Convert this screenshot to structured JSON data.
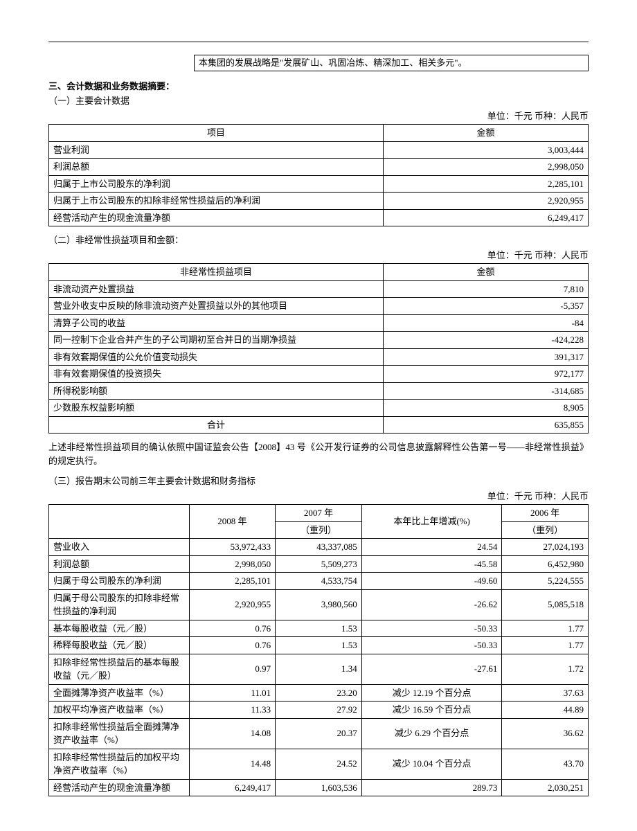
{
  "strategy_line": "本集团的发展战略是\"发展矿山、巩固冶炼、精深加工、相关多元\"。",
  "section3_title": "三、会计数据和业务数据摘要：",
  "sub1": {
    "title": "（一）主要会计数据",
    "unit": "单位：千元 币种：人民币",
    "headers": {
      "item": "项目",
      "amount": "金额"
    },
    "rows": [
      {
        "item": "营业利润",
        "amount": "3,003,444"
      },
      {
        "item": "利润总额",
        "amount": "2,998,050"
      },
      {
        "item": "归属于上市公司股东的净利润",
        "amount": "2,285,101"
      },
      {
        "item": "归属于上市公司股东的扣除非经常性损益后的净利润",
        "amount": "2,920,955"
      },
      {
        "item": "经营活动产生的现金流量净额",
        "amount": "6,249,417"
      }
    ]
  },
  "sub2": {
    "title": "（二）非经常性损益项目和金额：",
    "unit": "单位：千元 币种：人民币",
    "headers": {
      "item": "非经常性损益项目",
      "amount": "金额"
    },
    "rows": [
      {
        "item": "非流动资产处置损益",
        "amount": "7,810"
      },
      {
        "item": "营业外收支中反映的除非流动资产处置损益以外的其他项目",
        "amount": "-5,357"
      },
      {
        "item": "清算子公司的收益",
        "amount": "-84"
      },
      {
        "item": "同一控制下企业合并产生的子公司期初至合并日的当期净损益",
        "amount": "-424,228"
      },
      {
        "item": "非有效套期保值的公允价值变动损失",
        "amount": "391,317"
      },
      {
        "item": "非有效套期保值的投资损失",
        "amount": "972,177"
      },
      {
        "item": "所得税影响额",
        "amount": "-314,685"
      },
      {
        "item": "少数股东权益影响额",
        "amount": "8,905"
      }
    ],
    "total_label": "合计",
    "total_value": "635,855",
    "note": "上述非经常性损益项目的确认依照中国证监会公告【2008】43 号《公开发行证券的公司信息披露解释性公告第一号——非经常性损益》的规定执行。"
  },
  "sub3": {
    "title": "（三）报告期末公司前三年主要会计数据和财务指标",
    "unit": "单位：千元 币种：人民币",
    "headers": {
      "blank": "",
      "y2008": "2008 年",
      "y2007": "2007 年",
      "restated": "（重列）",
      "change": "本年比上年增减(%)",
      "y2006": "2006 年"
    },
    "rows": [
      {
        "item": "营业收入",
        "y2008": "53,972,433",
        "y2007": "43,337,085",
        "change": "24.54",
        "change_align": "num",
        "y2006": "27,024,193"
      },
      {
        "item": "利润总额",
        "y2008": "2,998,050",
        "y2007": "5,509,273",
        "change": "-45.58",
        "change_align": "num",
        "y2006": "6,452,980"
      },
      {
        "item": "归属于母公司股东的净利润",
        "y2008": "2,285,101",
        "y2007": "4,533,754",
        "change": "-49.60",
        "change_align": "num",
        "y2006": "5,224,555"
      },
      {
        "item": "归属于母公司股东的扣除非经常性损益的净利润",
        "y2008": "2,920,955",
        "y2007": "3,980,560",
        "change": "-26.62",
        "change_align": "num",
        "y2006": "5,085,518"
      },
      {
        "item": "基本每股收益（元／股）",
        "y2008": "0.76",
        "y2007": "1.53",
        "change": "-50.33",
        "change_align": "num",
        "y2006": "1.77"
      },
      {
        "item": "稀释每股收益（元／股）",
        "y2008": "0.76",
        "y2007": "1.53",
        "change": "-50.33",
        "change_align": "num",
        "y2006": "1.77"
      },
      {
        "item": "扣除非经常性损益后的基本每股收益（元／股）",
        "y2008": "0.97",
        "y2007": "1.34",
        "change": "-27.61",
        "change_align": "num",
        "y2006": "1.72"
      },
      {
        "item": "全面摊薄净资产收益率（%）",
        "y2008": "11.01",
        "y2007": "23.20",
        "change": "减少 12.19 个百分点",
        "change_align": "center",
        "y2006": "37.63"
      },
      {
        "item": "加权平均净资产收益率（%）",
        "y2008": "11.33",
        "y2007": "27.92",
        "change": "减少 16.59 个百分点",
        "change_align": "center",
        "y2006": "44.89"
      },
      {
        "item": "扣除非经常性损益后全面摊薄净资产收益率（%）",
        "y2008": "14.08",
        "y2007": "20.37",
        "change": "减少 6.29 个百分点",
        "change_align": "center",
        "y2006": "36.62"
      },
      {
        "item": "扣除非经常性损益后的加权平均净资产收益率（%）",
        "y2008": "14.48",
        "y2007": "24.52",
        "change": "减少 10.04 个百分点",
        "change_align": "center",
        "y2006": "43.70"
      },
      {
        "item": "经营活动产生的现金流量净额",
        "y2008": "6,249,417",
        "y2007": "1,603,536",
        "change": "289.73",
        "change_align": "num",
        "y2006": "2,030,251"
      }
    ]
  }
}
